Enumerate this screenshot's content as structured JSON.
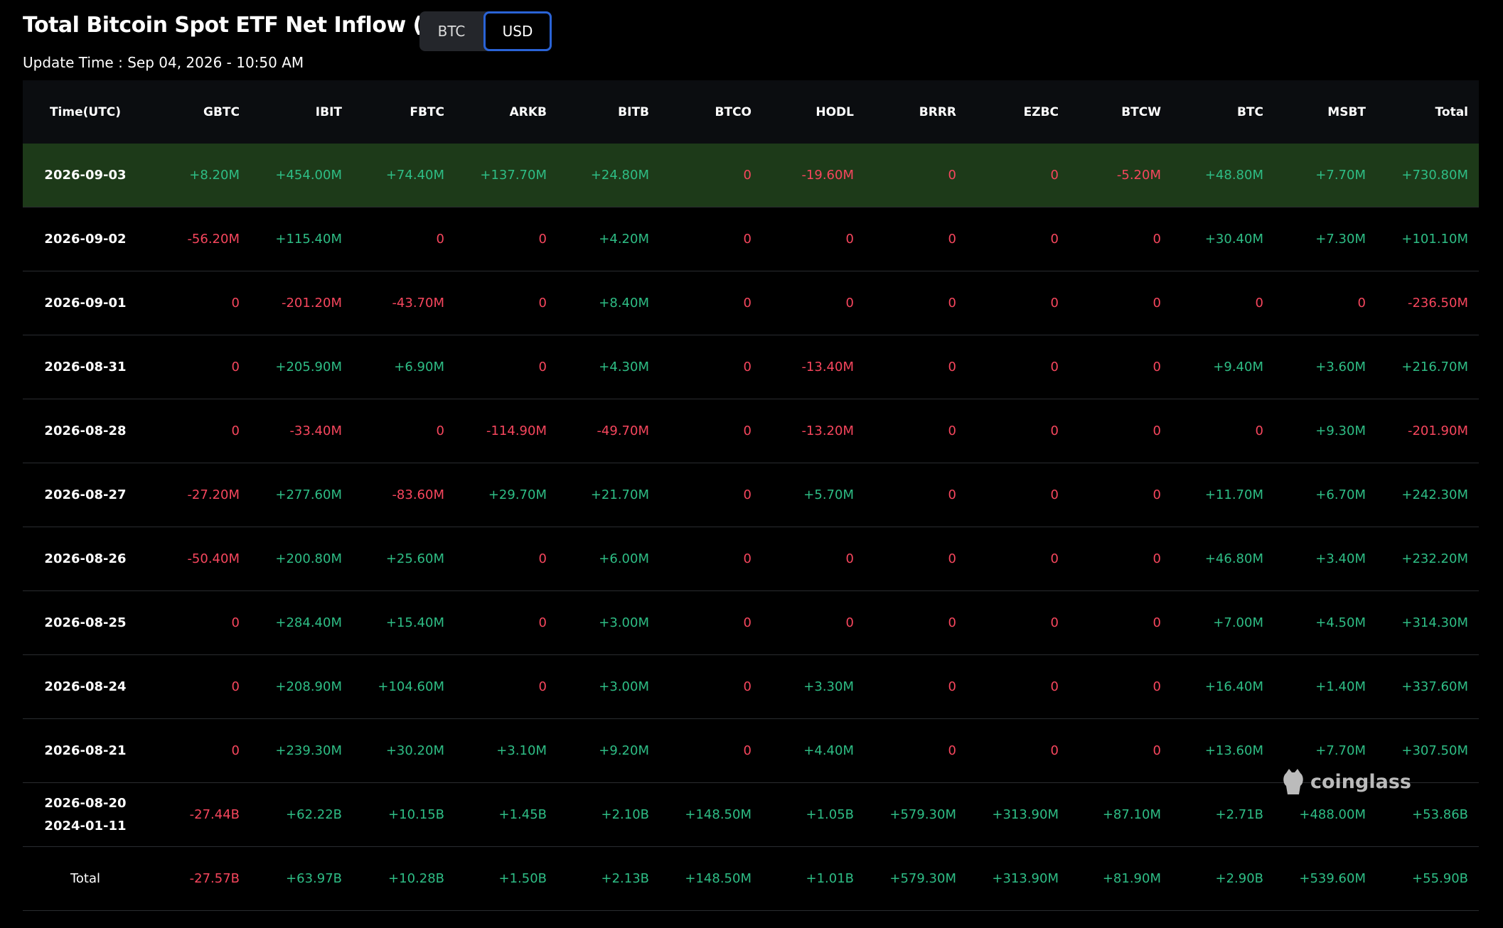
{
  "header": {
    "title": "Total Bitcoin Spot ETF Net Inflow (USD)",
    "toggle": [
      "BTC",
      "USD"
    ],
    "active": 1,
    "update_time": "Update Time : Sep 04, 2026 - 10:50 AM"
  },
  "table": {
    "columns": [
      "Time(UTC)",
      "GBTC",
      "IBIT",
      "FBTC",
      "ARKB",
      "BITB",
      "BTCO",
      "HODL",
      "BRRR",
      "EZBC",
      "BTCW",
      "BTC",
      "MSBT",
      "Total"
    ],
    "highlight_row": 0,
    "rows": [
      [
        "2026-09-03",
        "+8.20M",
        "+454.00M",
        "+74.40M",
        "+137.70M",
        "+24.80M",
        "0",
        "-19.60M",
        "0",
        "0",
        "-5.20M",
        "+48.80M",
        "+7.70M",
        "+730.80M"
      ],
      [
        "2026-09-02",
        "-56.20M",
        "+115.40M",
        "0",
        "0",
        "+4.20M",
        "0",
        "0",
        "0",
        "0",
        "0",
        "+30.40M",
        "+7.30M",
        "+101.10M"
      ],
      [
        "2026-09-01",
        "0",
        "-201.20M",
        "-43.70M",
        "0",
        "+8.40M",
        "0",
        "0",
        "0",
        "0",
        "0",
        "0",
        "0",
        "-236.50M"
      ],
      [
        "2026-08-31",
        "0",
        "+205.90M",
        "+6.90M",
        "0",
        "+4.30M",
        "0",
        "-13.40M",
        "0",
        "0",
        "0",
        "+9.40M",
        "+3.60M",
        "+216.70M"
      ],
      [
        "2026-08-28",
        "0",
        "-33.40M",
        "0",
        "-114.90M",
        "-49.70M",
        "0",
        "-13.20M",
        "0",
        "0",
        "0",
        "0",
        "+9.30M",
        "-201.90M"
      ],
      [
        "2026-08-27",
        "-27.20M",
        "+277.60M",
        "-83.60M",
        "+29.70M",
        "+21.70M",
        "0",
        "+5.70M",
        "0",
        "0",
        "0",
        "+11.70M",
        "+6.70M",
        "+242.30M"
      ],
      [
        "2026-08-26",
        "-50.40M",
        "+200.80M",
        "+25.60M",
        "0",
        "+6.00M",
        "0",
        "0",
        "0",
        "0",
        "0",
        "+46.80M",
        "+3.40M",
        "+232.20M"
      ],
      [
        "2026-08-25",
        "0",
        "+284.40M",
        "+15.40M",
        "0",
        "+3.00M",
        "0",
        "0",
        "0",
        "0",
        "0",
        "+7.00M",
        "+4.50M",
        "+314.30M"
      ],
      [
        "2026-08-24",
        "0",
        "+208.90M",
        "+104.60M",
        "0",
        "+3.00M",
        "0",
        "+3.30M",
        "0",
        "0",
        "0",
        "+16.40M",
        "+1.40M",
        "+337.60M"
      ],
      [
        "2026-08-21",
        "0",
        "+239.30M",
        "+30.20M",
        "+3.10M",
        "+9.20M",
        "0",
        "+4.40M",
        "0",
        "0",
        "0",
        "+13.60M",
        "+7.70M",
        "+307.50M"
      ],
      [
        [
          "2026-08-20",
          "2024-01-11"
        ],
        "-27.44B",
        "+62.22B",
        "+10.15B",
        "+1.45B",
        "+2.10B",
        "+148.50M",
        "+1.05B",
        "+579.30M",
        "+313.90M",
        "+87.10M",
        "+2.71B",
        "+488.00M",
        "+53.86B"
      ],
      [
        "Total",
        "-27.57B",
        "+63.97B",
        "+10.28B",
        "+1.50B",
        "+2.13B",
        "+148.50M",
        "+1.01B",
        "+579.30M",
        "+313.90M",
        "+81.90M",
        "+2.90B",
        "+539.60M",
        "+55.90B"
      ]
    ]
  },
  "watermark": "coinglass"
}
